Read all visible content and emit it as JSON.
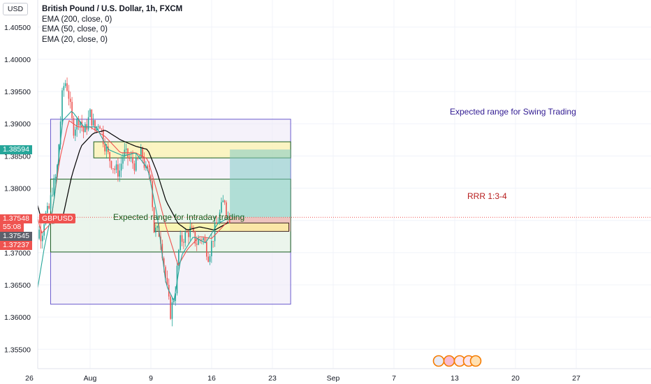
{
  "header": {
    "currency": "USD",
    "title": "British Pound / U.S. Dollar, 1h, FXCM",
    "indicators": [
      "EMA (200, close, 0)",
      "EMA (50, close, 0)",
      "EMA (20, close, 0)"
    ]
  },
  "price_tags": {
    "hi": "1.38594",
    "last": "1.37548",
    "countdown": "55:08",
    "bid": "1.37545",
    "lo": "1.37237",
    "symbol": "GBPUSD"
  },
  "annotations": {
    "swing": "Expected range for Swing Trading",
    "intraday": "Expected range for Intraday trading",
    "rrr": "RRR 1:3-4"
  },
  "colors": {
    "up": "#26a69a",
    "down": "#ef5350",
    "ema200": "#000000",
    "ema50": "#ef5350",
    "ema20": "#26a69a",
    "swing_box": "#6a5acd",
    "intraday_box": "#1b5e20",
    "zone_yellow": "#fff59d",
    "target": "#80cbc4",
    "stop": "#ef9a9a"
  },
  "chart_data": {
    "type": "candlestick",
    "title": "British Pound / U.S. Dollar, 1h, FXCM",
    "ylim": [
      1.352,
      1.4092
    ],
    "y_ticks": [
      "1.35500",
      "1.36000",
      "1.36500",
      "1.37000",
      "1.37500",
      "1.38000",
      "1.38500",
      "1.39000",
      "1.39500",
      "1.40000",
      "1.40500"
    ],
    "x_ticks": [
      "26",
      "Aug",
      "9",
      "16",
      "23",
      "Sep",
      "7",
      "13",
      "20",
      "27"
    ],
    "path": [
      [
        0,
        1.3825
      ],
      [
        0.03,
        1.366
      ],
      [
        0.08,
        1.359
      ],
      [
        0.14,
        1.374
      ],
      [
        0.2,
        1.3725
      ],
      [
        0.25,
        1.3755
      ],
      [
        0.32,
        1.3765
      ],
      [
        0.38,
        1.38
      ],
      [
        0.45,
        1.382
      ],
      [
        0.55,
        1.3955
      ],
      [
        0.6,
        1.3965
      ],
      [
        0.64,
        1.395
      ],
      [
        0.72,
        1.389
      ],
      [
        0.82,
        1.391
      ],
      [
        0.9,
        1.3885
      ],
      [
        1.0,
        1.3915
      ],
      [
        1.08,
        1.389
      ],
      [
        1.15,
        1.3905
      ],
      [
        1.22,
        1.3875
      ],
      [
        1.3,
        1.385
      ],
      [
        1.4,
        1.383
      ],
      [
        1.48,
        1.3825
      ],
      [
        1.55,
        1.3855
      ],
      [
        1.65,
        1.3845
      ],
      [
        1.75,
        1.3835
      ],
      [
        1.85,
        1.3855
      ],
      [
        1.92,
        1.3825
      ],
      [
        2.0,
        1.382
      ],
      [
        2.05,
        1.3735
      ],
      [
        2.15,
        1.373
      ],
      [
        2.25,
        1.3655
      ],
      [
        2.32,
        1.3605
      ],
      [
        2.4,
        1.364
      ],
      [
        2.47,
        1.3715
      ],
      [
        2.55,
        1.3725
      ],
      [
        2.65,
        1.3735
      ],
      [
        2.75,
        1.3715
      ],
      [
        2.85,
        1.3725
      ],
      [
        2.95,
        1.3695
      ],
      [
        3.05,
        1.3735
      ],
      [
        3.12,
        1.3755
      ],
      [
        3.18,
        1.3775
      ],
      [
        3.22,
        1.3785
      ],
      [
        3.25,
        1.3758
      ],
      [
        3.3,
        1.37548
      ]
    ],
    "ema200": [
      [
        0,
        1.3825
      ],
      [
        0.2,
        1.375
      ],
      [
        0.4,
        1.3745
      ],
      [
        0.55,
        1.3755
      ],
      [
        0.7,
        1.382
      ],
      [
        0.85,
        1.3865
      ],
      [
        1.05,
        1.3885
      ],
      [
        1.25,
        1.389
      ],
      [
        1.5,
        1.3875
      ],
      [
        1.75,
        1.3865
      ],
      [
        1.95,
        1.386
      ],
      [
        2.1,
        1.3825
      ],
      [
        2.25,
        1.378
      ],
      [
        2.45,
        1.3745
      ],
      [
        2.6,
        1.3735
      ],
      [
        2.8,
        1.374
      ],
      [
        3.05,
        1.3735
      ],
      [
        3.3,
        1.3748
      ]
    ],
    "ema50": [
      [
        0,
        1.3805
      ],
      [
        0.2,
        1.373
      ],
      [
        0.35,
        1.3745
      ],
      [
        0.5,
        1.3845
      ],
      [
        0.65,
        1.3905
      ],
      [
        0.8,
        1.3895
      ],
      [
        1.0,
        1.3895
      ],
      [
        1.25,
        1.388
      ],
      [
        1.5,
        1.3855
      ],
      [
        1.75,
        1.3855
      ],
      [
        1.95,
        1.3845
      ],
      [
        2.1,
        1.3795
      ],
      [
        2.25,
        1.374
      ],
      [
        2.45,
        1.368
      ],
      [
        2.6,
        1.3705
      ],
      [
        2.8,
        1.3725
      ],
      [
        3.0,
        1.3722
      ],
      [
        3.3,
        1.3752
      ]
    ],
    "ema20": [
      [
        0,
        1.379
      ],
      [
        0.12,
        1.3635
      ],
      [
        0.25,
        1.371
      ],
      [
        0.4,
        1.3775
      ],
      [
        0.55,
        1.3905
      ],
      [
        0.7,
        1.392
      ],
      [
        0.9,
        1.3895
      ],
      [
        1.1,
        1.3895
      ],
      [
        1.3,
        1.386
      ],
      [
        1.55,
        1.385
      ],
      [
        1.75,
        1.3855
      ],
      [
        1.95,
        1.383
      ],
      [
        2.1,
        1.376
      ],
      [
        2.25,
        1.365
      ],
      [
        2.38,
        1.3625
      ],
      [
        2.5,
        1.3695
      ],
      [
        2.7,
        1.3725
      ],
      [
        2.9,
        1.3715
      ],
      [
        3.1,
        1.3745
      ],
      [
        3.3,
        1.3755
      ]
    ],
    "drawings": {
      "swing_range": {
        "x": [
          0.35,
          4.3
        ],
        "y": [
          1.362,
          1.3907
        ]
      },
      "intraday_range": {
        "x": [
          0.35,
          4.3
        ],
        "y": [
          1.3701,
          1.3814
        ]
      },
      "upper_zone": {
        "x": [
          1.06,
          4.3
        ],
        "y": [
          1.3847,
          1.3872
        ]
      },
      "lower_zone": {
        "x": [
          2.06,
          4.27
        ],
        "y": [
          1.3733,
          1.3746
        ]
      },
      "target_zone": {
        "x": [
          3.3,
          4.3
        ],
        "y": [
          1.37548,
          1.386
        ]
      },
      "stop_zone": {
        "x": [
          3.3,
          4.3
        ],
        "y": [
          1.3733,
          1.37548
        ]
      }
    },
    "last_price": 1.37548
  }
}
